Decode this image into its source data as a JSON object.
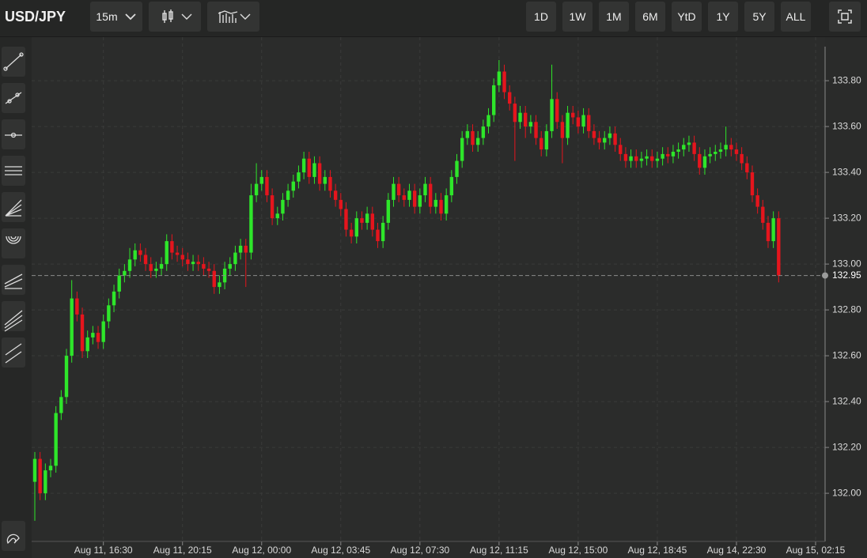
{
  "toolbar": {
    "symbol": "USD/JPY",
    "interval": "15m",
    "ranges": [
      "1D",
      "1W",
      "1M",
      "6M",
      "YtD",
      "1Y",
      "5Y",
      "ALL"
    ]
  },
  "chart_data": {
    "type": "candlestick",
    "up_color": "#2ee62a",
    "down_color": "#e5151d",
    "grid": true,
    "ylim": [
      131.79,
      133.99
    ],
    "yticks": [
      {
        "value": 132,
        "label": "132.00"
      },
      {
        "value": 132.2,
        "label": "132.20"
      },
      {
        "value": 132.4,
        "label": "132.40"
      },
      {
        "value": 132.6,
        "label": "132.60"
      },
      {
        "value": 132.8,
        "label": "132.80"
      },
      {
        "value": 133,
        "label": "133.00"
      },
      {
        "value": 133.2,
        "label": "133.20"
      },
      {
        "value": 133.4,
        "label": "133.40"
      },
      {
        "value": 133.6,
        "label": "133.60"
      },
      {
        "value": 133.8,
        "label": "133.80"
      }
    ],
    "xlim": [
      -0.6,
      149.8
    ],
    "xticks": [
      {
        "value": 13,
        "label": "Aug 11, 16:30"
      },
      {
        "value": 28,
        "label": "Aug 11, 20:15"
      },
      {
        "value": 43,
        "label": "Aug 12, 00:00"
      },
      {
        "value": 58,
        "label": "Aug 12, 03:45"
      },
      {
        "value": 73,
        "label": "Aug 12, 07:30"
      },
      {
        "value": 88,
        "label": "Aug 12, 11:15"
      },
      {
        "value": 103,
        "label": "Aug 12, 15:00"
      },
      {
        "value": 118,
        "label": "Aug 12, 18:45"
      },
      {
        "value": 133,
        "label": "Aug 14, 22:30"
      },
      {
        "value": 148,
        "label": "Aug 15, 02:15"
      }
    ],
    "last_price": 132.95,
    "ohlc": [
      [
        132.05,
        132.18,
        131.88,
        132.15
      ],
      [
        132.15,
        132.18,
        131.97,
        132.0
      ],
      [
        132.0,
        132.13,
        131.97,
        132.1
      ],
      [
        132.1,
        132.15,
        132.07,
        132.12
      ],
      [
        132.12,
        132.38,
        132.09,
        132.35
      ],
      [
        132.35,
        132.45,
        132.32,
        132.42
      ],
      [
        132.42,
        132.63,
        132.39,
        132.6
      ],
      [
        132.6,
        132.93,
        132.57,
        132.85
      ],
      [
        132.85,
        132.88,
        132.75,
        132.78
      ],
      [
        132.78,
        132.81,
        132.59,
        132.62
      ],
      [
        132.62,
        132.71,
        132.59,
        132.68
      ],
      [
        132.68,
        132.73,
        132.65,
        132.7
      ],
      [
        132.7,
        132.73,
        132.63,
        132.66
      ],
      [
        132.66,
        132.78,
        132.63,
        132.75
      ],
      [
        132.75,
        132.85,
        132.72,
        132.82
      ],
      [
        132.82,
        132.91,
        132.79,
        132.88
      ],
      [
        132.88,
        132.98,
        132.85,
        132.95
      ],
      [
        132.95,
        133.0,
        132.92,
        132.97
      ],
      [
        132.97,
        133.07,
        132.94,
        133.02
      ],
      [
        133.02,
        133.09,
        132.99,
        133.06
      ],
      [
        133.06,
        133.09,
        133.01,
        133.04
      ],
      [
        133.04,
        133.07,
        132.97,
        133.0
      ],
      [
        133.0,
        133.03,
        132.94,
        132.97
      ],
      [
        132.97,
        133.01,
        132.94,
        132.98
      ],
      [
        132.98,
        133.03,
        132.95,
        133.0
      ],
      [
        133.0,
        133.13,
        132.97,
        133.1
      ],
      [
        133.1,
        133.13,
        133.02,
        133.05
      ],
      [
        133.05,
        133.08,
        133.01,
        133.04
      ],
      [
        133.04,
        133.07,
        132.99,
        133.02
      ],
      [
        133.02,
        133.05,
        132.97,
        133.0
      ],
      [
        133.0,
        133.04,
        132.97,
        133.01
      ],
      [
        133.01,
        133.04,
        132.97,
        133.0
      ],
      [
        133.0,
        133.03,
        132.95,
        132.98
      ],
      [
        132.98,
        133.01,
        132.94,
        132.97
      ],
      [
        132.97,
        133.0,
        132.87,
        132.9
      ],
      [
        132.9,
        132.95,
        132.87,
        132.92
      ],
      [
        132.92,
        133.01,
        132.89,
        132.98
      ],
      [
        132.98,
        133.03,
        132.95,
        133.0
      ],
      [
        133.0,
        133.08,
        132.97,
        133.05
      ],
      [
        133.05,
        133.11,
        133.02,
        133.08
      ],
      [
        133.08,
        133.11,
        132.9,
        133.05
      ],
      [
        133.05,
        133.35,
        133.02,
        133.3
      ],
      [
        133.3,
        133.44,
        133.27,
        133.35
      ],
      [
        133.35,
        133.41,
        133.32,
        133.38
      ],
      [
        133.38,
        133.41,
        133.27,
        133.3
      ],
      [
        133.3,
        133.33,
        133.17,
        133.2
      ],
      [
        133.2,
        133.25,
        133.17,
        133.22
      ],
      [
        133.22,
        133.31,
        133.19,
        133.28
      ],
      [
        133.28,
        133.35,
        133.25,
        133.32
      ],
      [
        133.32,
        133.39,
        133.29,
        133.36
      ],
      [
        133.36,
        133.43,
        133.33,
        133.4
      ],
      [
        133.4,
        133.49,
        133.37,
        133.46
      ],
      [
        133.46,
        133.49,
        133.35,
        133.38
      ],
      [
        133.38,
        133.47,
        133.35,
        133.44
      ],
      [
        133.44,
        133.47,
        133.32,
        133.35
      ],
      [
        133.35,
        133.41,
        133.32,
        133.38
      ],
      [
        133.38,
        133.41,
        133.29,
        133.32
      ],
      [
        133.32,
        133.35,
        133.25,
        133.28
      ],
      [
        133.28,
        133.31,
        133.21,
        133.24
      ],
      [
        133.24,
        133.27,
        133.12,
        133.15
      ],
      [
        133.15,
        133.18,
        133.09,
        133.12
      ],
      [
        133.12,
        133.23,
        133.09,
        133.2
      ],
      [
        133.2,
        133.23,
        133.15,
        133.18
      ],
      [
        133.18,
        133.25,
        133.15,
        133.22
      ],
      [
        133.22,
        133.25,
        133.12,
        133.15
      ],
      [
        133.15,
        133.18,
        133.07,
        133.1
      ],
      [
        133.1,
        133.21,
        133.07,
        133.18
      ],
      [
        133.18,
        133.31,
        133.15,
        133.28
      ],
      [
        133.28,
        133.38,
        133.25,
        133.35
      ],
      [
        133.35,
        133.38,
        133.27,
        133.3
      ],
      [
        133.3,
        133.33,
        133.25,
        133.28
      ],
      [
        133.28,
        133.35,
        133.25,
        133.32
      ],
      [
        133.32,
        133.35,
        133.22,
        133.25
      ],
      [
        133.25,
        133.33,
        133.22,
        133.3
      ],
      [
        133.3,
        133.38,
        133.27,
        133.35
      ],
      [
        133.35,
        133.38,
        133.22,
        133.25
      ],
      [
        133.25,
        133.31,
        133.22,
        133.28
      ],
      [
        133.28,
        133.31,
        133.19,
        133.22
      ],
      [
        133.22,
        133.33,
        133.19,
        133.3
      ],
      [
        133.3,
        133.41,
        133.27,
        133.38
      ],
      [
        133.38,
        133.48,
        133.35,
        133.45
      ],
      [
        133.45,
        133.58,
        133.42,
        133.55
      ],
      [
        133.55,
        133.61,
        133.52,
        133.58
      ],
      [
        133.58,
        133.61,
        133.49,
        133.52
      ],
      [
        133.52,
        133.58,
        133.49,
        133.55
      ],
      [
        133.55,
        133.63,
        133.52,
        133.6
      ],
      [
        133.6,
        133.68,
        133.57,
        133.65
      ],
      [
        133.65,
        133.81,
        133.62,
        133.78
      ],
      [
        133.78,
        133.89,
        133.75,
        133.84
      ],
      [
        133.84,
        133.87,
        133.72,
        133.75
      ],
      [
        133.75,
        133.78,
        133.67,
        133.7
      ],
      [
        133.7,
        133.73,
        133.45,
        133.62
      ],
      [
        133.62,
        133.69,
        133.59,
        133.66
      ],
      [
        133.66,
        133.69,
        133.55,
        133.6
      ],
      [
        133.6,
        133.65,
        133.57,
        133.62
      ],
      [
        133.62,
        133.65,
        133.52,
        133.55
      ],
      [
        133.55,
        133.58,
        133.47,
        133.5
      ],
      [
        133.5,
        133.61,
        133.47,
        133.58
      ],
      [
        133.58,
        133.87,
        133.55,
        133.72
      ],
      [
        133.72,
        133.75,
        133.59,
        133.62
      ],
      [
        133.62,
        133.65,
        133.44,
        133.55
      ],
      [
        133.55,
        133.69,
        133.52,
        133.66
      ],
      [
        133.66,
        133.69,
        133.61,
        133.64
      ],
      [
        133.64,
        133.67,
        133.57,
        133.6
      ],
      [
        133.6,
        133.68,
        133.57,
        133.65
      ],
      [
        133.65,
        133.68,
        133.55,
        133.58
      ],
      [
        133.58,
        133.61,
        133.52,
        133.55
      ],
      [
        133.55,
        133.58,
        133.5,
        133.53
      ],
      [
        133.53,
        133.58,
        133.5,
        133.55
      ],
      [
        133.55,
        133.6,
        133.52,
        133.57
      ],
      [
        133.57,
        133.6,
        133.49,
        133.52
      ],
      [
        133.52,
        133.55,
        133.45,
        133.48
      ],
      [
        133.48,
        133.51,
        133.42,
        133.45
      ],
      [
        133.45,
        133.5,
        133.42,
        133.47
      ],
      [
        133.47,
        133.5,
        133.42,
        133.45
      ],
      [
        133.45,
        133.49,
        133.42,
        133.46
      ],
      [
        133.46,
        133.5,
        133.43,
        133.47
      ],
      [
        133.47,
        133.5,
        133.42,
        133.45
      ],
      [
        133.45,
        133.49,
        133.42,
        133.46
      ],
      [
        133.46,
        133.51,
        133.43,
        133.48
      ],
      [
        133.48,
        133.51,
        133.44,
        133.47
      ],
      [
        133.47,
        133.52,
        133.44,
        133.49
      ],
      [
        133.49,
        133.53,
        133.46,
        133.5
      ],
      [
        133.5,
        133.55,
        133.47,
        133.52
      ],
      [
        133.52,
        133.56,
        133.49,
        133.53
      ],
      [
        133.53,
        133.56,
        133.45,
        133.48
      ],
      [
        133.48,
        133.51,
        133.39,
        133.42
      ],
      [
        133.42,
        133.5,
        133.39,
        133.47
      ],
      [
        133.47,
        133.51,
        133.44,
        133.48
      ],
      [
        133.48,
        133.52,
        133.45,
        133.49
      ],
      [
        133.49,
        133.53,
        133.46,
        133.5
      ],
      [
        133.5,
        133.6,
        133.47,
        133.52
      ],
      [
        133.52,
        133.55,
        133.47,
        133.5
      ],
      [
        133.5,
        133.53,
        133.45,
        133.48
      ],
      [
        133.48,
        133.51,
        133.41,
        133.44
      ],
      [
        133.44,
        133.47,
        133.37,
        133.4
      ],
      [
        133.4,
        133.43,
        133.27,
        133.3
      ],
      [
        133.3,
        133.33,
        133.22,
        133.25
      ],
      [
        133.25,
        133.28,
        133.15,
        133.18
      ],
      [
        133.18,
        133.21,
        133.07,
        133.1
      ],
      [
        133.1,
        133.23,
        133.07,
        133.2
      ],
      [
        133.2,
        133.23,
        132.92,
        132.95
      ]
    ]
  }
}
